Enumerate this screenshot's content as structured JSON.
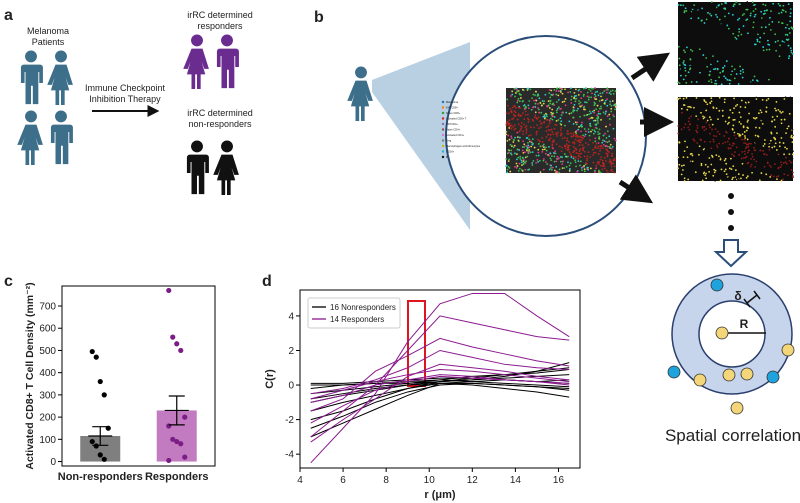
{
  "panel_labels": [
    "a",
    "b",
    "c",
    "d"
  ],
  "panel_a": {
    "patients": [
      "Melanoma",
      "Patients"
    ],
    "therapy": [
      "Immune Checkpoint",
      "Inhibition Therapy"
    ],
    "responders": [
      "irRC determined",
      "responders"
    ],
    "non_responders": [
      "irRC determined",
      "non-responders"
    ]
  },
  "panel_b": {
    "legend": [
      "Melanoma",
      "Ki67CD8+",
      "Naive CD8+",
      "Activated CD8+ T",
      "Ki67CD4+",
      "Naive CD4+",
      "Activated CD4+",
      "Treg",
      "Macrophages and Monocytes",
      "CD16+",
      "B"
    ]
  },
  "panel_e": {
    "delta": "δ",
    "radius": "R",
    "caption": "Spatial correlation"
  },
  "chart_data": [
    {
      "type": "bar",
      "categories": [
        "Non-responders",
        "Responders"
      ],
      "values": [
        115,
        230
      ],
      "errors": [
        42,
        65
      ],
      "colors": [
        "#7f7f7f",
        "#c27bc0"
      ],
      "point_colors": [
        "#000000",
        "#7a1e86"
      ],
      "points": [
        [
          495,
          470,
          360,
          300,
          150,
          90,
          70,
          30,
          10
        ],
        [
          770,
          560,
          530,
          500,
          200,
          160,
          100,
          90,
          80,
          20,
          5
        ]
      ],
      "ylabel": "Activated CD8+ T Cell Density (mm⁻²)",
      "ylim": [
        -20,
        790
      ],
      "yticks": [
        0,
        100,
        200,
        300,
        400,
        500,
        600,
        700
      ]
    },
    {
      "type": "line",
      "x": [
        4.5,
        6,
        7.5,
        9,
        10.5,
        12,
        13.5,
        15,
        16.5
      ],
      "xlabel": "r (μm)",
      "ylabel": "C(r)",
      "xlim": [
        4,
        17
      ],
      "ylim": [
        -4.8,
        5.5
      ],
      "xticks": [
        4,
        6,
        8,
        10,
        12,
        14,
        16
      ],
      "yticks": [
        -4,
        -2,
        0,
        2,
        4
      ],
      "series": [
        {
          "name": "16 Nonresponders",
          "color": "#000000",
          "values": [
            [
              -0.5,
              -0.3,
              -0.1,
              0.1,
              0.3,
              0.5,
              0.6,
              0.8,
              1.0
            ],
            [
              -1.0,
              -0.6,
              -0.3,
              0.0,
              0.2,
              0.3,
              0.4,
              0.5,
              0.6
            ],
            [
              -1.5,
              -1.0,
              -0.6,
              -0.2,
              0.1,
              0.2,
              0.3,
              0.2,
              0.3
            ],
            [
              -2.5,
              -1.8,
              -1.0,
              -0.4,
              0.0,
              0.1,
              0.0,
              -0.1,
              -0.2
            ],
            [
              -3.0,
              -2.2,
              -1.4,
              -0.6,
              0.1,
              0.0,
              -0.2,
              -0.4,
              -0.7
            ],
            [
              0.0,
              0.0,
              0.1,
              0.1,
              0.2,
              0.3,
              0.5,
              0.8,
              1.3
            ],
            [
              0.1,
              0.1,
              0.2,
              0.3,
              0.4,
              0.4,
              0.3,
              0.2,
              0.1
            ],
            [
              -0.2,
              0.0,
              0.1,
              0.2,
              0.3,
              0.2,
              0.1,
              0.0,
              -0.1
            ],
            [
              -0.8,
              -0.5,
              -0.2,
              0.0,
              0.1,
              0.1,
              0.0,
              -0.1,
              -0.3
            ],
            [
              -2.0,
              -1.5,
              -0.8,
              -0.2,
              0.2,
              0.4,
              0.6,
              0.7,
              0.9
            ]
          ]
        },
        {
          "name": "14 Responders",
          "color": "#8b1a8f",
          "values": [
            [
              -4.5,
              -2.5,
              -0.5,
              2.5,
              4.7,
              5.3,
              5.3,
              4.0,
              2.8
            ],
            [
              -3.0,
              -1.5,
              0.0,
              2.0,
              4.0,
              3.6,
              3.2,
              2.8,
              2.6
            ],
            [
              -1.5,
              -0.8,
              0.8,
              1.7,
              2.7,
              2.2,
              1.8,
              1.4,
              1.1
            ],
            [
              -0.5,
              -0.2,
              0.3,
              1.0,
              2.0,
              1.6,
              1.2,
              1.0,
              0.9
            ],
            [
              -3.3,
              -2.0,
              -0.8,
              0.5,
              1.2,
              1.0,
              0.8,
              0.5,
              0.3
            ],
            [
              -0.8,
              -0.3,
              0.2,
              0.6,
              0.9,
              0.8,
              0.6,
              0.4,
              0.2
            ],
            [
              -1.0,
              -0.6,
              0.0,
              0.3,
              0.6,
              0.5,
              0.3,
              0.2,
              0.1
            ],
            [
              -2.2,
              -1.2,
              -0.3,
              0.2,
              0.5,
              0.4,
              0.3,
              0.2,
              0.0
            ]
          ]
        }
      ]
    }
  ]
}
